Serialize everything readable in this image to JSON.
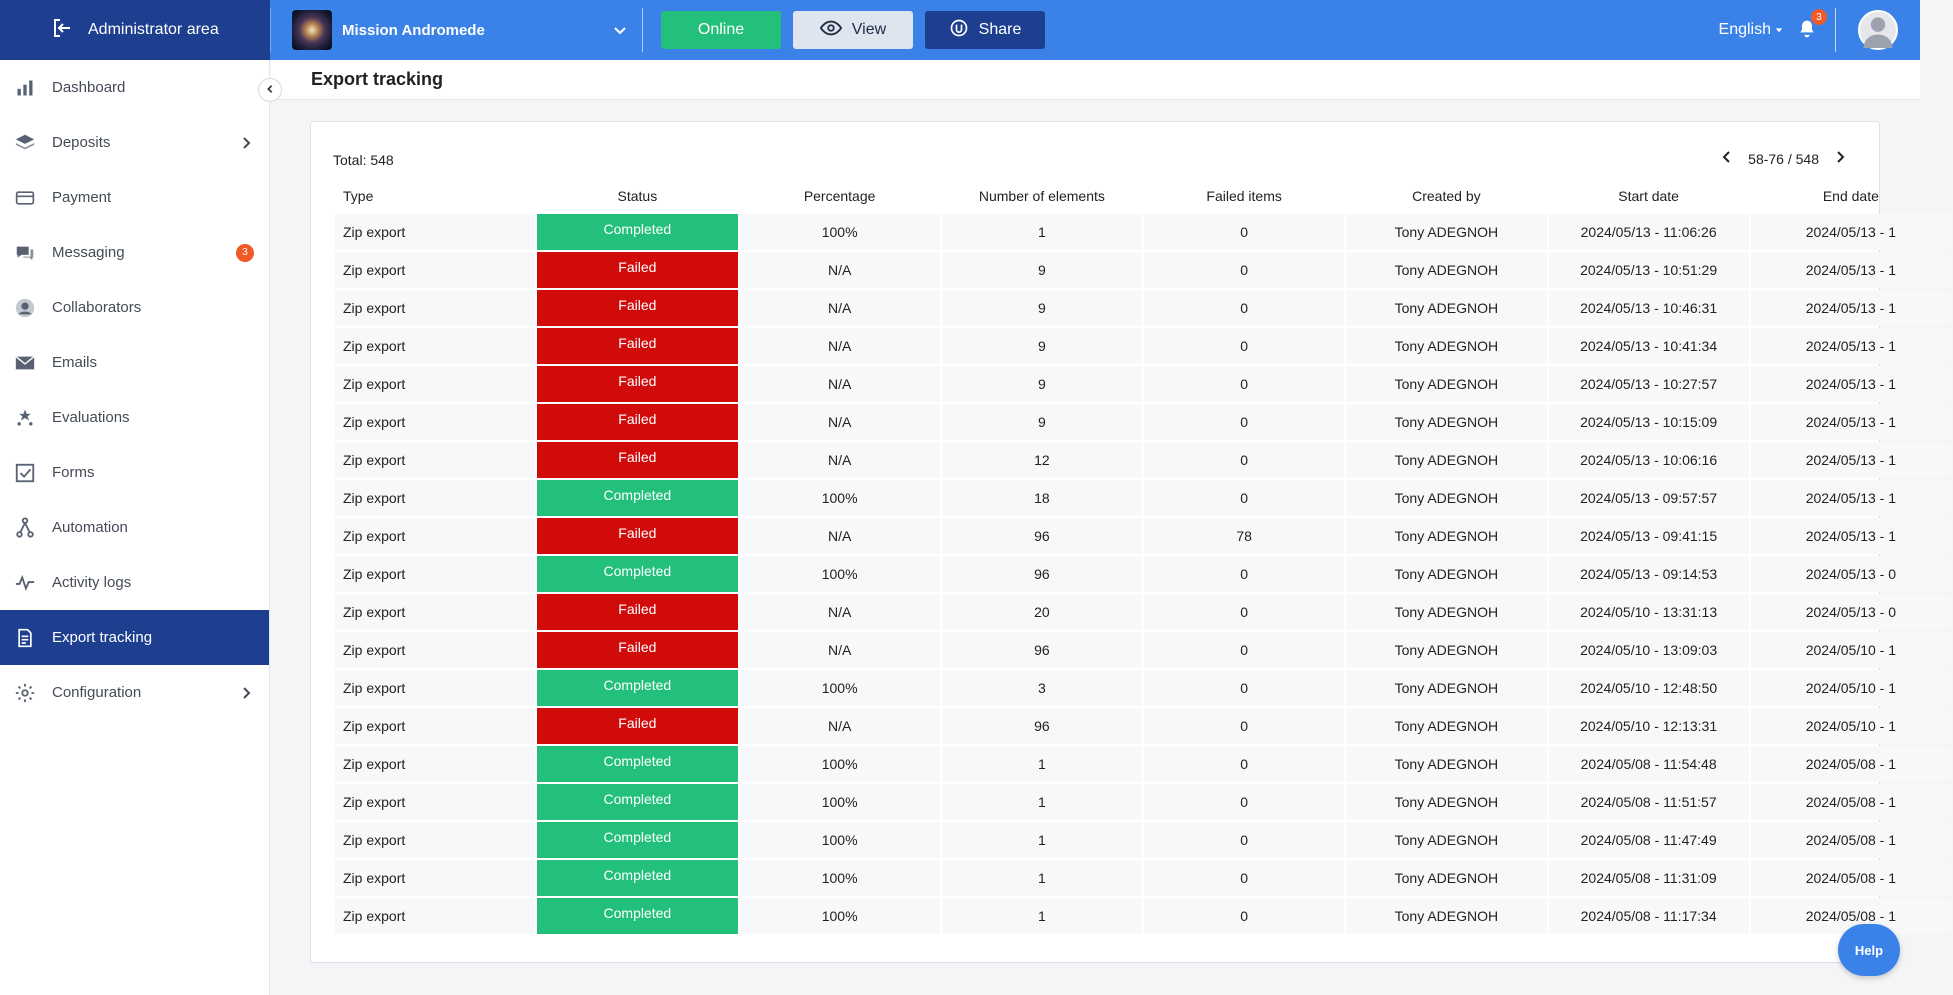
{
  "topbar": {
    "admin_label": "Administrator area",
    "mission_name": "Mission Andromede",
    "online_label": "Online",
    "view_label": "View",
    "share_label": "Share",
    "language": "English",
    "notification_count": "3",
    "brand_color": "#3b82e8",
    "dark_color": "#1e3f8f"
  },
  "sidebar": {
    "items": [
      {
        "label": "Dashboard",
        "icon": "bar-chart-icon"
      },
      {
        "label": "Deposits",
        "icon": "layers-icon",
        "expandable": true
      },
      {
        "label": "Payment",
        "icon": "card-icon"
      },
      {
        "label": "Messaging",
        "icon": "chat-icon",
        "badge": "3"
      },
      {
        "label": "Collaborators",
        "icon": "user-circle-icon"
      },
      {
        "label": "Emails",
        "icon": "envelope-icon"
      },
      {
        "label": "Evaluations",
        "icon": "stars-icon"
      },
      {
        "label": "Forms",
        "icon": "checkbox-icon"
      },
      {
        "label": "Automation",
        "icon": "automation-icon"
      },
      {
        "label": "Activity logs",
        "icon": "pulse-icon"
      },
      {
        "label": "Export tracking",
        "icon": "document-icon",
        "active": true
      },
      {
        "label": "Configuration",
        "icon": "gear-icon",
        "expandable": true
      }
    ]
  },
  "page": {
    "title": "Export tracking",
    "total": "Total: 548",
    "pagination": "58-76 / 548"
  },
  "table": {
    "columns": [
      "Type",
      "Status",
      "Percentage",
      "Number of elements",
      "Failed items",
      "Created by",
      "Start date",
      "End date"
    ],
    "rows": [
      [
        "Zip export",
        "Completed",
        "100%",
        "1",
        "0",
        "Tony ADEGNOH",
        "2024/05/13 - 11:06:26",
        "2024/05/13 - 1"
      ],
      [
        "Zip export",
        "Failed",
        "N/A",
        "9",
        "0",
        "Tony ADEGNOH",
        "2024/05/13 - 10:51:29",
        "2024/05/13 - 1"
      ],
      [
        "Zip export",
        "Failed",
        "N/A",
        "9",
        "0",
        "Tony ADEGNOH",
        "2024/05/13 - 10:46:31",
        "2024/05/13 - 1"
      ],
      [
        "Zip export",
        "Failed",
        "N/A",
        "9",
        "0",
        "Tony ADEGNOH",
        "2024/05/13 - 10:41:34",
        "2024/05/13 - 1"
      ],
      [
        "Zip export",
        "Failed",
        "N/A",
        "9",
        "0",
        "Tony ADEGNOH",
        "2024/05/13 - 10:27:57",
        "2024/05/13 - 1"
      ],
      [
        "Zip export",
        "Failed",
        "N/A",
        "9",
        "0",
        "Tony ADEGNOH",
        "2024/05/13 - 10:15:09",
        "2024/05/13 - 1"
      ],
      [
        "Zip export",
        "Failed",
        "N/A",
        "12",
        "0",
        "Tony ADEGNOH",
        "2024/05/13 - 10:06:16",
        "2024/05/13 - 1"
      ],
      [
        "Zip export",
        "Completed",
        "100%",
        "18",
        "0",
        "Tony ADEGNOH",
        "2024/05/13 - 09:57:57",
        "2024/05/13 - 1"
      ],
      [
        "Zip export",
        "Failed",
        "N/A",
        "96",
        "78",
        "Tony ADEGNOH",
        "2024/05/13 - 09:41:15",
        "2024/05/13 - 1"
      ],
      [
        "Zip export",
        "Completed",
        "100%",
        "96",
        "0",
        "Tony ADEGNOH",
        "2024/05/13 - 09:14:53",
        "2024/05/13 - 0"
      ],
      [
        "Zip export",
        "Failed",
        "N/A",
        "20",
        "0",
        "Tony ADEGNOH",
        "2024/05/10 - 13:31:13",
        "2024/05/13 - 0"
      ],
      [
        "Zip export",
        "Failed",
        "N/A",
        "96",
        "0",
        "Tony ADEGNOH",
        "2024/05/10 - 13:09:03",
        "2024/05/10 - 1"
      ],
      [
        "Zip export",
        "Completed",
        "100%",
        "3",
        "0",
        "Tony ADEGNOH",
        "2024/05/10 - 12:48:50",
        "2024/05/10 - 1"
      ],
      [
        "Zip export",
        "Failed",
        "N/A",
        "96",
        "0",
        "Tony ADEGNOH",
        "2024/05/10 - 12:13:31",
        "2024/05/10 - 1"
      ],
      [
        "Zip export",
        "Completed",
        "100%",
        "1",
        "0",
        "Tony ADEGNOH",
        "2024/05/08 - 11:54:48",
        "2024/05/08 - 1"
      ],
      [
        "Zip export",
        "Completed",
        "100%",
        "1",
        "0",
        "Tony ADEGNOH",
        "2024/05/08 - 11:51:57",
        "2024/05/08 - 1"
      ],
      [
        "Zip export",
        "Completed",
        "100%",
        "1",
        "0",
        "Tony ADEGNOH",
        "2024/05/08 - 11:47:49",
        "2024/05/08 - 1"
      ],
      [
        "Zip export",
        "Completed",
        "100%",
        "1",
        "0",
        "Tony ADEGNOH",
        "2024/05/08 - 11:31:09",
        "2024/05/08 - 1"
      ],
      [
        "Zip export",
        "Completed",
        "100%",
        "1",
        "0",
        "Tony ADEGNOH",
        "2024/05/08 - 11:17:34",
        "2024/05/08 - 1"
      ]
    ],
    "status_colors": {
      "Completed": "#22c07a",
      "Failed": "#d10a0a"
    }
  },
  "help_label": "Help"
}
